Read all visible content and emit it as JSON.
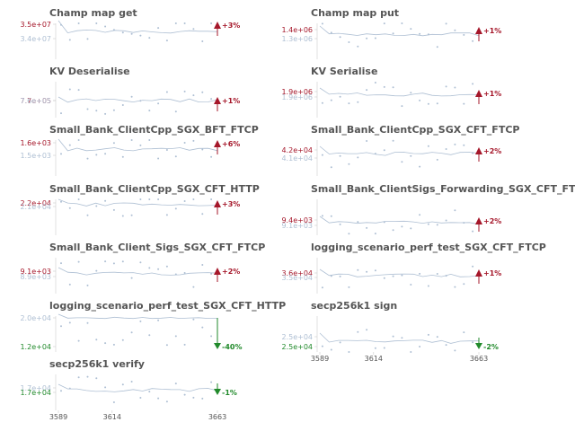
{
  "colors": {
    "line": "#aebfd3",
    "point": "#aebfd3",
    "title": "#555555",
    "grid": "#cccccc",
    "up": "#a5172a",
    "down": "#218a2b",
    "tick_muted": "#aebfd3"
  },
  "chart_data": [
    {
      "type": "line",
      "title": "Champ map get",
      "yticks": [
        {
          "label": "3.5e+07",
          "color": "up"
        },
        {
          "label": "3.4e+07",
          "color": "tick_muted"
        }
      ],
      "delta": "+3%",
      "direction": "up",
      "x": [
        3589,
        3663
      ]
    },
    {
      "type": "line",
      "title": "Champ map put",
      "yticks": [
        {
          "label": "1.4e+06",
          "color": "up"
        },
        {
          "label": "1.3e+06",
          "color": "tick_muted"
        }
      ],
      "delta": "+1%",
      "direction": "up",
      "x": [
        3589,
        3663
      ]
    },
    {
      "type": "line",
      "title": "KV Deserialise",
      "yticks": [
        {
          "label": "7.7e+05",
          "color": "up"
        },
        {
          "label": "7.6e+05",
          "color": "tick_muted"
        }
      ],
      "delta": "+1%",
      "direction": "up",
      "x": [
        3589,
        3663
      ]
    },
    {
      "type": "line",
      "title": "KV Serialise",
      "yticks": [
        {
          "label": "1.9e+06",
          "color": "up"
        },
        {
          "label": "1.9e+06",
          "color": "tick_muted"
        }
      ],
      "delta": "+1%",
      "direction": "up",
      "x": [
        3589,
        3663
      ]
    },
    {
      "type": "line",
      "title": "Small_Bank_ClientCpp_SGX_BFT_FTCP",
      "yticks": [
        {
          "label": "1.6e+03",
          "color": "up"
        },
        {
          "label": "1.5e+03",
          "color": "tick_muted"
        }
      ],
      "delta": "+6%",
      "direction": "up",
      "x": [
        3589,
        3663
      ]
    },
    {
      "type": "line",
      "title": "Small_Bank_ClientCpp_SGX_CFT_FTCP",
      "yticks": [
        {
          "label": "4.2e+04",
          "color": "up"
        },
        {
          "label": "4.1e+04",
          "color": "tick_muted"
        }
      ],
      "delta": "+2%",
      "direction": "up",
      "x": [
        3589,
        3663
      ]
    },
    {
      "type": "line",
      "title": "Small_Bank_ClientCpp_SGX_CFT_HTTP",
      "yticks": [
        {
          "label": "2.2e+04",
          "color": "up"
        },
        {
          "label": "2.1e+04",
          "color": "tick_muted"
        }
      ],
      "delta": "+3%",
      "direction": "up",
      "x": [
        3589,
        3663
      ]
    },
    {
      "type": "line",
      "title": "Small_Bank_ClientSigs_Forwarding_SGX_CFT_FTCP",
      "yticks": [
        {
          "label": "9.4e+03",
          "color": "up"
        },
        {
          "label": "9.1e+03",
          "color": "tick_muted"
        }
      ],
      "delta": "+2%",
      "direction": "up",
      "x": [
        3589,
        3663
      ]
    },
    {
      "type": "line",
      "title": "Small_Bank_Client_Sigs_SGX_CFT_FTCP",
      "yticks": [
        {
          "label": "9.1e+03",
          "color": "up"
        },
        {
          "label": "8.9e+03",
          "color": "tick_muted"
        }
      ],
      "delta": "+2%",
      "direction": "up",
      "x": [
        3589,
        3663
      ]
    },
    {
      "type": "line",
      "title": "logging_scenario_perf_test_SGX_CFT_FTCP",
      "yticks": [
        {
          "label": "3.6e+04",
          "color": "up"
        },
        {
          "label": "3.5e+04",
          "color": "tick_muted"
        }
      ],
      "delta": "+1%",
      "direction": "up",
      "x": [
        3589,
        3663
      ]
    },
    {
      "type": "line",
      "title": "logging_scenario_perf_test_SGX_CFT_HTTP",
      "yticks": [
        {
          "label": "2.0e+04",
          "color": "tick_muted"
        },
        {
          "label": "1.2e+04",
          "color": "down"
        }
      ],
      "delta": "-40%",
      "direction": "down",
      "x": [
        3589,
        3663
      ]
    },
    {
      "type": "line",
      "title": "secp256k1 sign",
      "yticks": [
        {
          "label": "2.5e+04",
          "color": "tick_muted"
        },
        {
          "label": "2.5e+04",
          "color": "down"
        }
      ],
      "delta": "-2%",
      "direction": "down",
      "x": [
        3589,
        3663
      ],
      "xticks": [
        "3589",
        "3614",
        "3663"
      ]
    },
    {
      "type": "line",
      "title": "secp256k1 verify",
      "yticks": [
        {
          "label": "1.7e+04",
          "color": "tick_muted"
        },
        {
          "label": "1.7e+04",
          "color": "down"
        }
      ],
      "delta": "-1%",
      "direction": "down",
      "x": [
        3589,
        3663
      ],
      "xticks": [
        "3589",
        "3614",
        "3663"
      ]
    }
  ]
}
